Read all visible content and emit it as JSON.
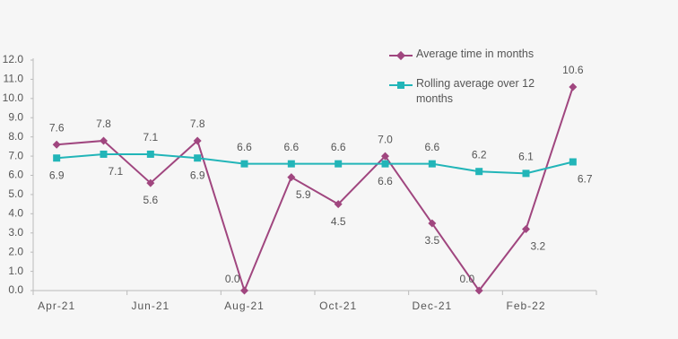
{
  "chart_data": {
    "type": "line",
    "categories": [
      "Apr-21",
      null,
      "Jun-21",
      null,
      "Aug-21",
      null,
      "Oct-21",
      null,
      "Dec-21",
      null,
      "Feb-22",
      null
    ],
    "series": [
      {
        "name": "Average time in months",
        "color": "#a0467f",
        "marker": "diamond",
        "values": [
          7.6,
          7.8,
          5.6,
          7.8,
          0,
          5.9,
          4.5,
          7,
          3.5,
          0,
          3.2,
          10.6
        ],
        "value_labels": [
          "7.6",
          "7.8",
          "5.6",
          "7.8",
          "0.0",
          "5.9",
          "4.5",
          "7.0",
          "3.5",
          "0.0",
          "3.2",
          "10.6"
        ]
      },
      {
        "name": "Rolling average over 12 months",
        "color": "#22b5b8",
        "marker": "square",
        "values": [
          6.9,
          7.1,
          7.1,
          6.9,
          6.6,
          6.6,
          6.6,
          6.6,
          6.6,
          6.2,
          6.1,
          6.7
        ],
        "value_labels": [
          "6.9",
          "7.1",
          "7.1",
          "6.9",
          "6.6",
          "6.6",
          "6.6",
          "6.6",
          "6.6",
          "6.2",
          "6.1",
          "6.7"
        ]
      }
    ],
    "ylim": [
      0,
      12
    ],
    "yticks": [
      {
        "value": 0,
        "label": "0.0"
      },
      {
        "value": 1,
        "label": "1.0"
      },
      {
        "value": 2,
        "label": "2.0"
      },
      {
        "value": 3,
        "label": "3.0"
      },
      {
        "value": 4,
        "label": "4.0"
      },
      {
        "value": 5,
        "label": "5.0"
      },
      {
        "value": 6,
        "label": "6.0"
      },
      {
        "value": 7,
        "label": "7.0"
      },
      {
        "value": 8,
        "label": "8.0"
      },
      {
        "value": 9,
        "label": "9.0"
      },
      {
        "value": 10,
        "label": "10.0"
      },
      {
        "value": 11,
        "label": "11.0"
      },
      {
        "value": 12,
        "label": "12.0"
      }
    ],
    "grid": false,
    "legend": "top-right"
  }
}
